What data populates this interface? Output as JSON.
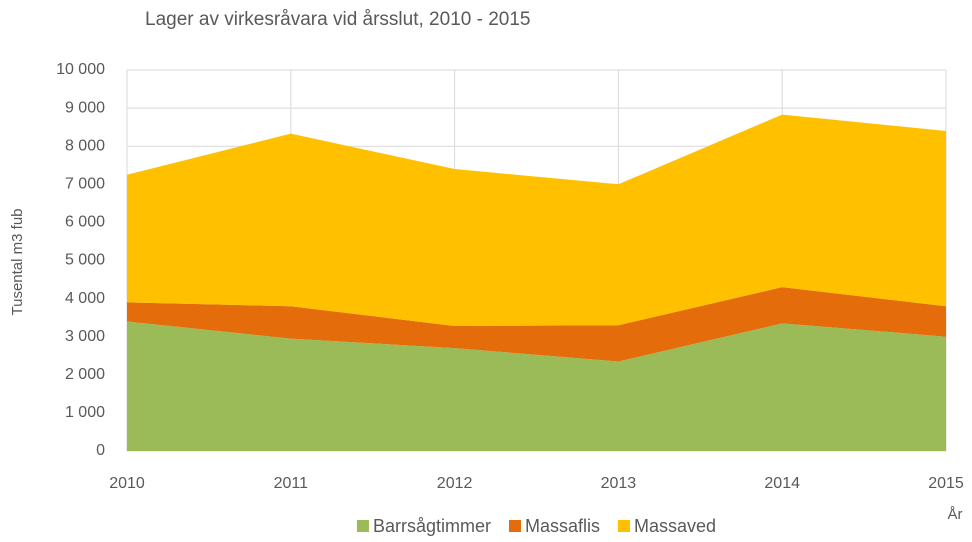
{
  "chart_data": {
    "type": "stacked_area",
    "title": "Lager av virkesråvara vid årsslut, 2010 - 2015",
    "x": [
      2010,
      2011,
      2012,
      2013,
      2014,
      2015
    ],
    "xlabel": "År",
    "ylabel": "Tusental m3 fub",
    "series": [
      {
        "name": "Barrsågtimmer",
        "color": "#9bbb59",
        "values": [
          3400,
          2950,
          2700,
          2350,
          3350,
          3000
        ]
      },
      {
        "name": "Massaflis",
        "color": "#e46c0a",
        "values": [
          500,
          850,
          580,
          950,
          950,
          800
        ]
      },
      {
        "name": "Massaved",
        "color": "#ffc000",
        "values": [
          3350,
          4530,
          4120,
          3700,
          4530,
          4600
        ]
      }
    ],
    "xlim": [
      2010,
      2015
    ],
    "xticks": [
      2010,
      2011,
      2012,
      2013,
      2014,
      2015
    ],
    "ylim": [
      0,
      10000
    ],
    "yticks": [
      0,
      {
        "value": 1000,
        "label": "1 000"
      },
      {
        "value": 2000,
        "label": "2 000"
      },
      {
        "value": 3000,
        "label": "3 000"
      },
      {
        "value": 4000,
        "label": "4 000"
      },
      {
        "value": 5000,
        "label": "5 000"
      },
      {
        "value": 6000,
        "label": "6 000"
      },
      {
        "value": 7000,
        "label": "7 000"
      },
      {
        "value": 8000,
        "label": "8 000"
      },
      {
        "value": 9000,
        "label": "9 000"
      },
      {
        "value": 10000,
        "label": "10 000"
      }
    ],
    "grid": true,
    "legend": "bottom"
  }
}
